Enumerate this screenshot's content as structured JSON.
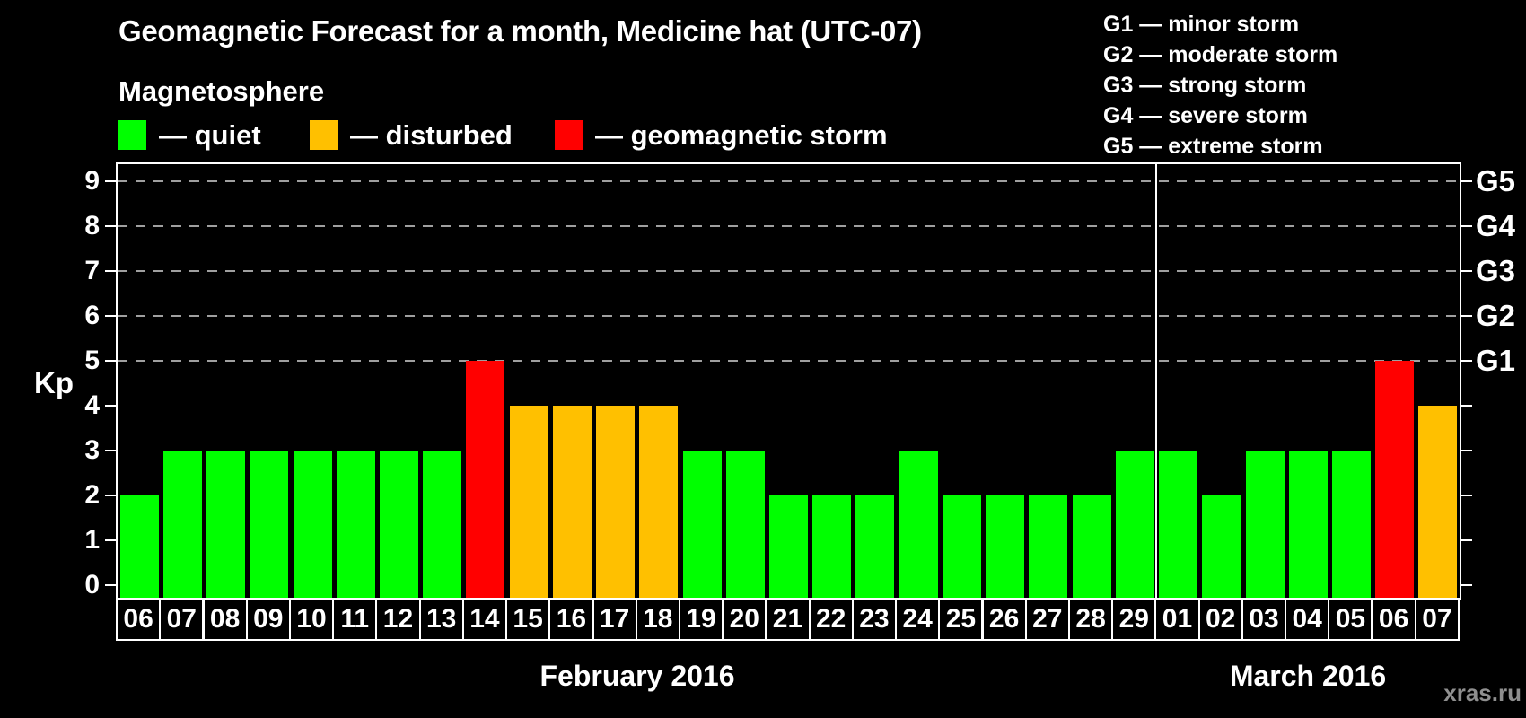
{
  "title": "Geomagnetic Forecast for a month, Medicine hat (UTC-07)",
  "em_dash": "—",
  "magnetosphere_legend": {
    "heading": "Magnetosphere",
    "items": [
      {
        "status": "quiet",
        "label": "quiet",
        "color": "#00ff00"
      },
      {
        "status": "disturbed",
        "label": "disturbed",
        "color": "#ffc000"
      },
      {
        "status": "storm",
        "label": "geomagnetic storm",
        "color": "#ff0000"
      }
    ]
  },
  "storm_scale_legend": [
    {
      "code": "G1",
      "description": "minor storm"
    },
    {
      "code": "G2",
      "description": "moderate storm"
    },
    {
      "code": "G3",
      "description": "strong storm"
    },
    {
      "code": "G4",
      "description": "severe storm"
    },
    {
      "code": "G5",
      "description": "extreme storm"
    }
  ],
  "watermark": "xras.ru",
  "chart_data": {
    "type": "bar",
    "ylabel": "Kp",
    "ylim": [
      0,
      9
    ],
    "y_ticks": [
      0,
      1,
      2,
      3,
      4,
      5,
      6,
      7,
      8,
      9
    ],
    "gridline_kp": [
      5,
      6,
      7,
      8,
      9
    ],
    "grid": "horizontal dashed lines at storm threshold levels Kp 5-9",
    "legend_position": "top",
    "right_axis_labels": [
      {
        "kp": 5,
        "label": "G1"
      },
      {
        "kp": 6,
        "label": "G2"
      },
      {
        "kp": 7,
        "label": "G3"
      },
      {
        "kp": 8,
        "label": "G4"
      },
      {
        "kp": 9,
        "label": "G5"
      }
    ],
    "months": [
      {
        "label": "February 2016",
        "days": 24
      },
      {
        "label": "March 2016",
        "days": 7
      }
    ],
    "categories": [
      "06",
      "07",
      "08",
      "09",
      "10",
      "11",
      "12",
      "13",
      "14",
      "15",
      "16",
      "17",
      "18",
      "19",
      "20",
      "21",
      "22",
      "23",
      "24",
      "25",
      "26",
      "27",
      "28",
      "29",
      "01",
      "02",
      "03",
      "04",
      "05",
      "06",
      "07"
    ],
    "values": [
      2,
      3,
      3,
      3,
      3,
      3,
      3,
      3,
      5,
      4,
      4,
      4,
      4,
      3,
      3,
      2,
      2,
      2,
      3,
      2,
      2,
      2,
      2,
      3,
      3,
      2,
      3,
      3,
      3,
      5,
      4
    ],
    "statuses": [
      "quiet",
      "quiet",
      "quiet",
      "quiet",
      "quiet",
      "quiet",
      "quiet",
      "quiet",
      "storm",
      "disturbed",
      "disturbed",
      "disturbed",
      "disturbed",
      "quiet",
      "quiet",
      "quiet",
      "quiet",
      "quiet",
      "quiet",
      "quiet",
      "quiet",
      "quiet",
      "quiet",
      "quiet",
      "quiet",
      "quiet",
      "quiet",
      "quiet",
      "quiet",
      "storm",
      "disturbed"
    ],
    "status_colors": {
      "quiet": "#00ff00",
      "disturbed": "#ffc000",
      "storm": "#ff0000"
    }
  }
}
